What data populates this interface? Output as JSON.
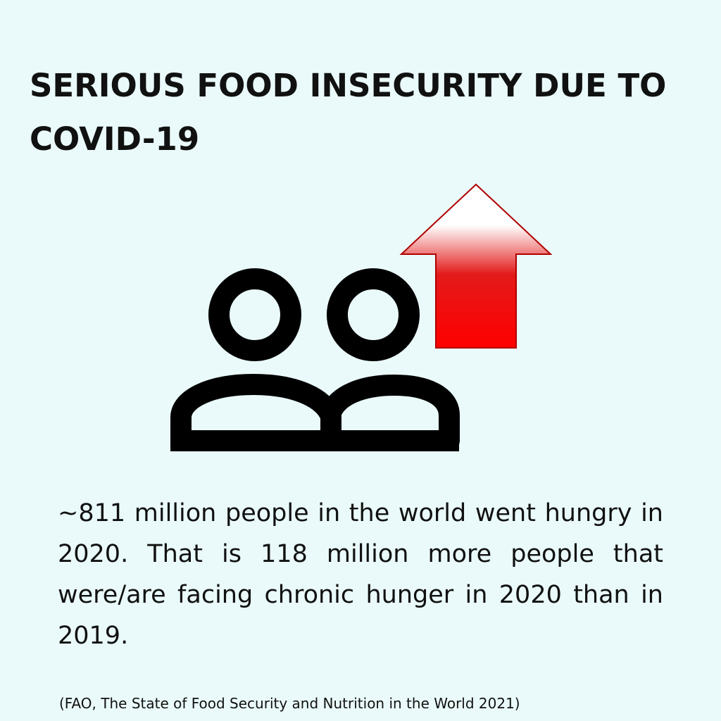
{
  "title": "SERIOUS FOOD INSECURITY DUE TO COVID-19",
  "body": "~811 million people in the world went hungry in 2020. That is 118 million more people that were/are facing chronic hunger in 2020 than in 2019.",
  "citation": "(FAO, The State of Food Security and Nutrition in the World 2021)",
  "icons": {
    "people": "people-icon",
    "arrow": "up-arrow-icon"
  },
  "colors": {
    "background": "#eafafa",
    "text": "#111111",
    "icon": "#000000",
    "arrow_top": "#ffffff",
    "arrow_bottom": "#e60000",
    "arrow_outline": "#b00000"
  }
}
